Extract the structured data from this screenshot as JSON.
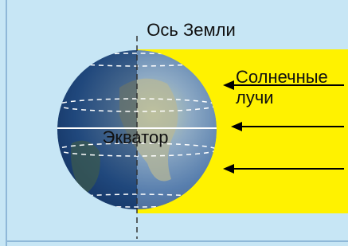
{
  "labels": {
    "axis": "Ось Земли",
    "rays_line1": "Солнечные",
    "rays_line2": "лучи",
    "equator": "Экватор"
  }
}
